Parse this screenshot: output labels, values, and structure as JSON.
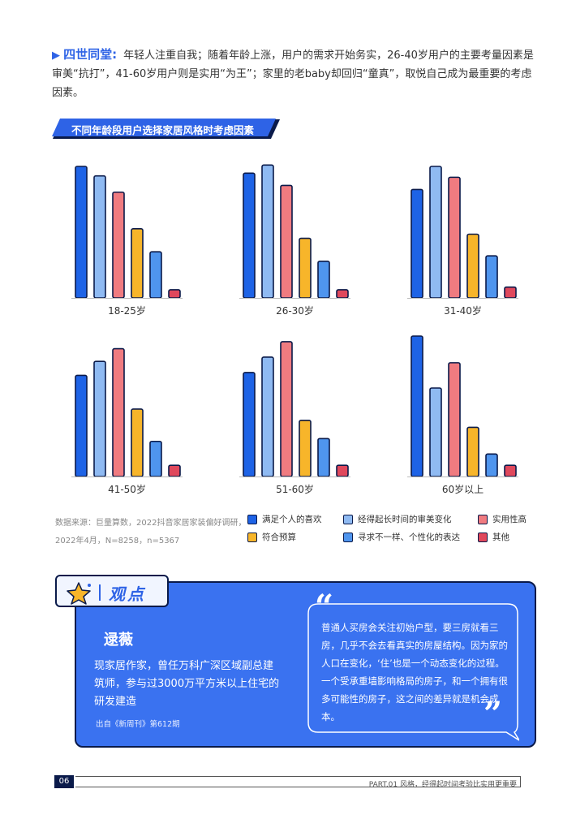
{
  "intro": {
    "lead": "四世同堂:",
    "body": "年轻人注重自我；随着年龄上涨，用户的需求开始务实，26-40岁用户的主要考量因素是审美“抗打”，41-60岁用户则是实用“为王”；家里的老baby却回归“童真”，取悦自己成为最重要的考虑因素。"
  },
  "banner": {
    "title": "不同年龄段用户选择家居风格时考虑因素"
  },
  "chart_data": {
    "type": "bar",
    "title": "不同年龄段用户选择家居风格时考虑因素",
    "series_names": [
      "满足个人的喜欢",
      "经得起长时间的审美变化",
      "实用性高",
      "符合预算",
      "寻求不一样、个性化的表达",
      "其他"
    ],
    "colors": [
      "#1e63e6",
      "#8fbaf2",
      "#f07b80",
      "#f7b52a",
      "#4f95ee",
      "#e0485c"
    ],
    "panels": [
      {
        "label": "18-25岁",
        "values": [
          97,
          90,
          78,
          51,
          34,
          6
        ]
      },
      {
        "label": "26-30岁",
        "values": [
          92,
          98,
          83,
          44,
          27,
          6
        ]
      },
      {
        "label": "31-40岁",
        "values": [
          80,
          97,
          89,
          47,
          31,
          8
        ]
      },
      {
        "label": "41-50岁",
        "values": [
          72,
          82,
          91,
          48,
          25,
          8
        ]
      },
      {
        "label": "51-60岁",
        "values": [
          74,
          85,
          96,
          40,
          27,
          8
        ]
      },
      {
        "label": "60岁以上",
        "values": [
          100,
          63,
          81,
          35,
          16,
          8
        ]
      }
    ],
    "ylim": [
      0,
      100
    ]
  },
  "source": {
    "line1": "数据来源：巨量算数，2022抖音家居家装偏好调研，",
    "line2": "2022年4月，N=8258，n=5367"
  },
  "opinion": {
    "tab_label": "观点",
    "name": "逯薇",
    "description": "现家居作家，曾任万科广深区域副总建筑师，参与过3000万平方米以上住宅的研发建造",
    "from": "出自《新周刊》第612期",
    "quote": "普通人买房会关注初始户型，要三房就看三房，几乎不会去看真实的房屋结构。因为家的人口在变化，‘住’也是一个动态变化的过程。一个受承重墙影响格局的房子，和一个拥有很多可能性的房子，这之间的差异就是机会成本。",
    "quote_open": "“",
    "quote_close": "”"
  },
  "footer": {
    "page": "06",
    "part": "PART.01 风格，经得起时间考验比实用更重要"
  }
}
